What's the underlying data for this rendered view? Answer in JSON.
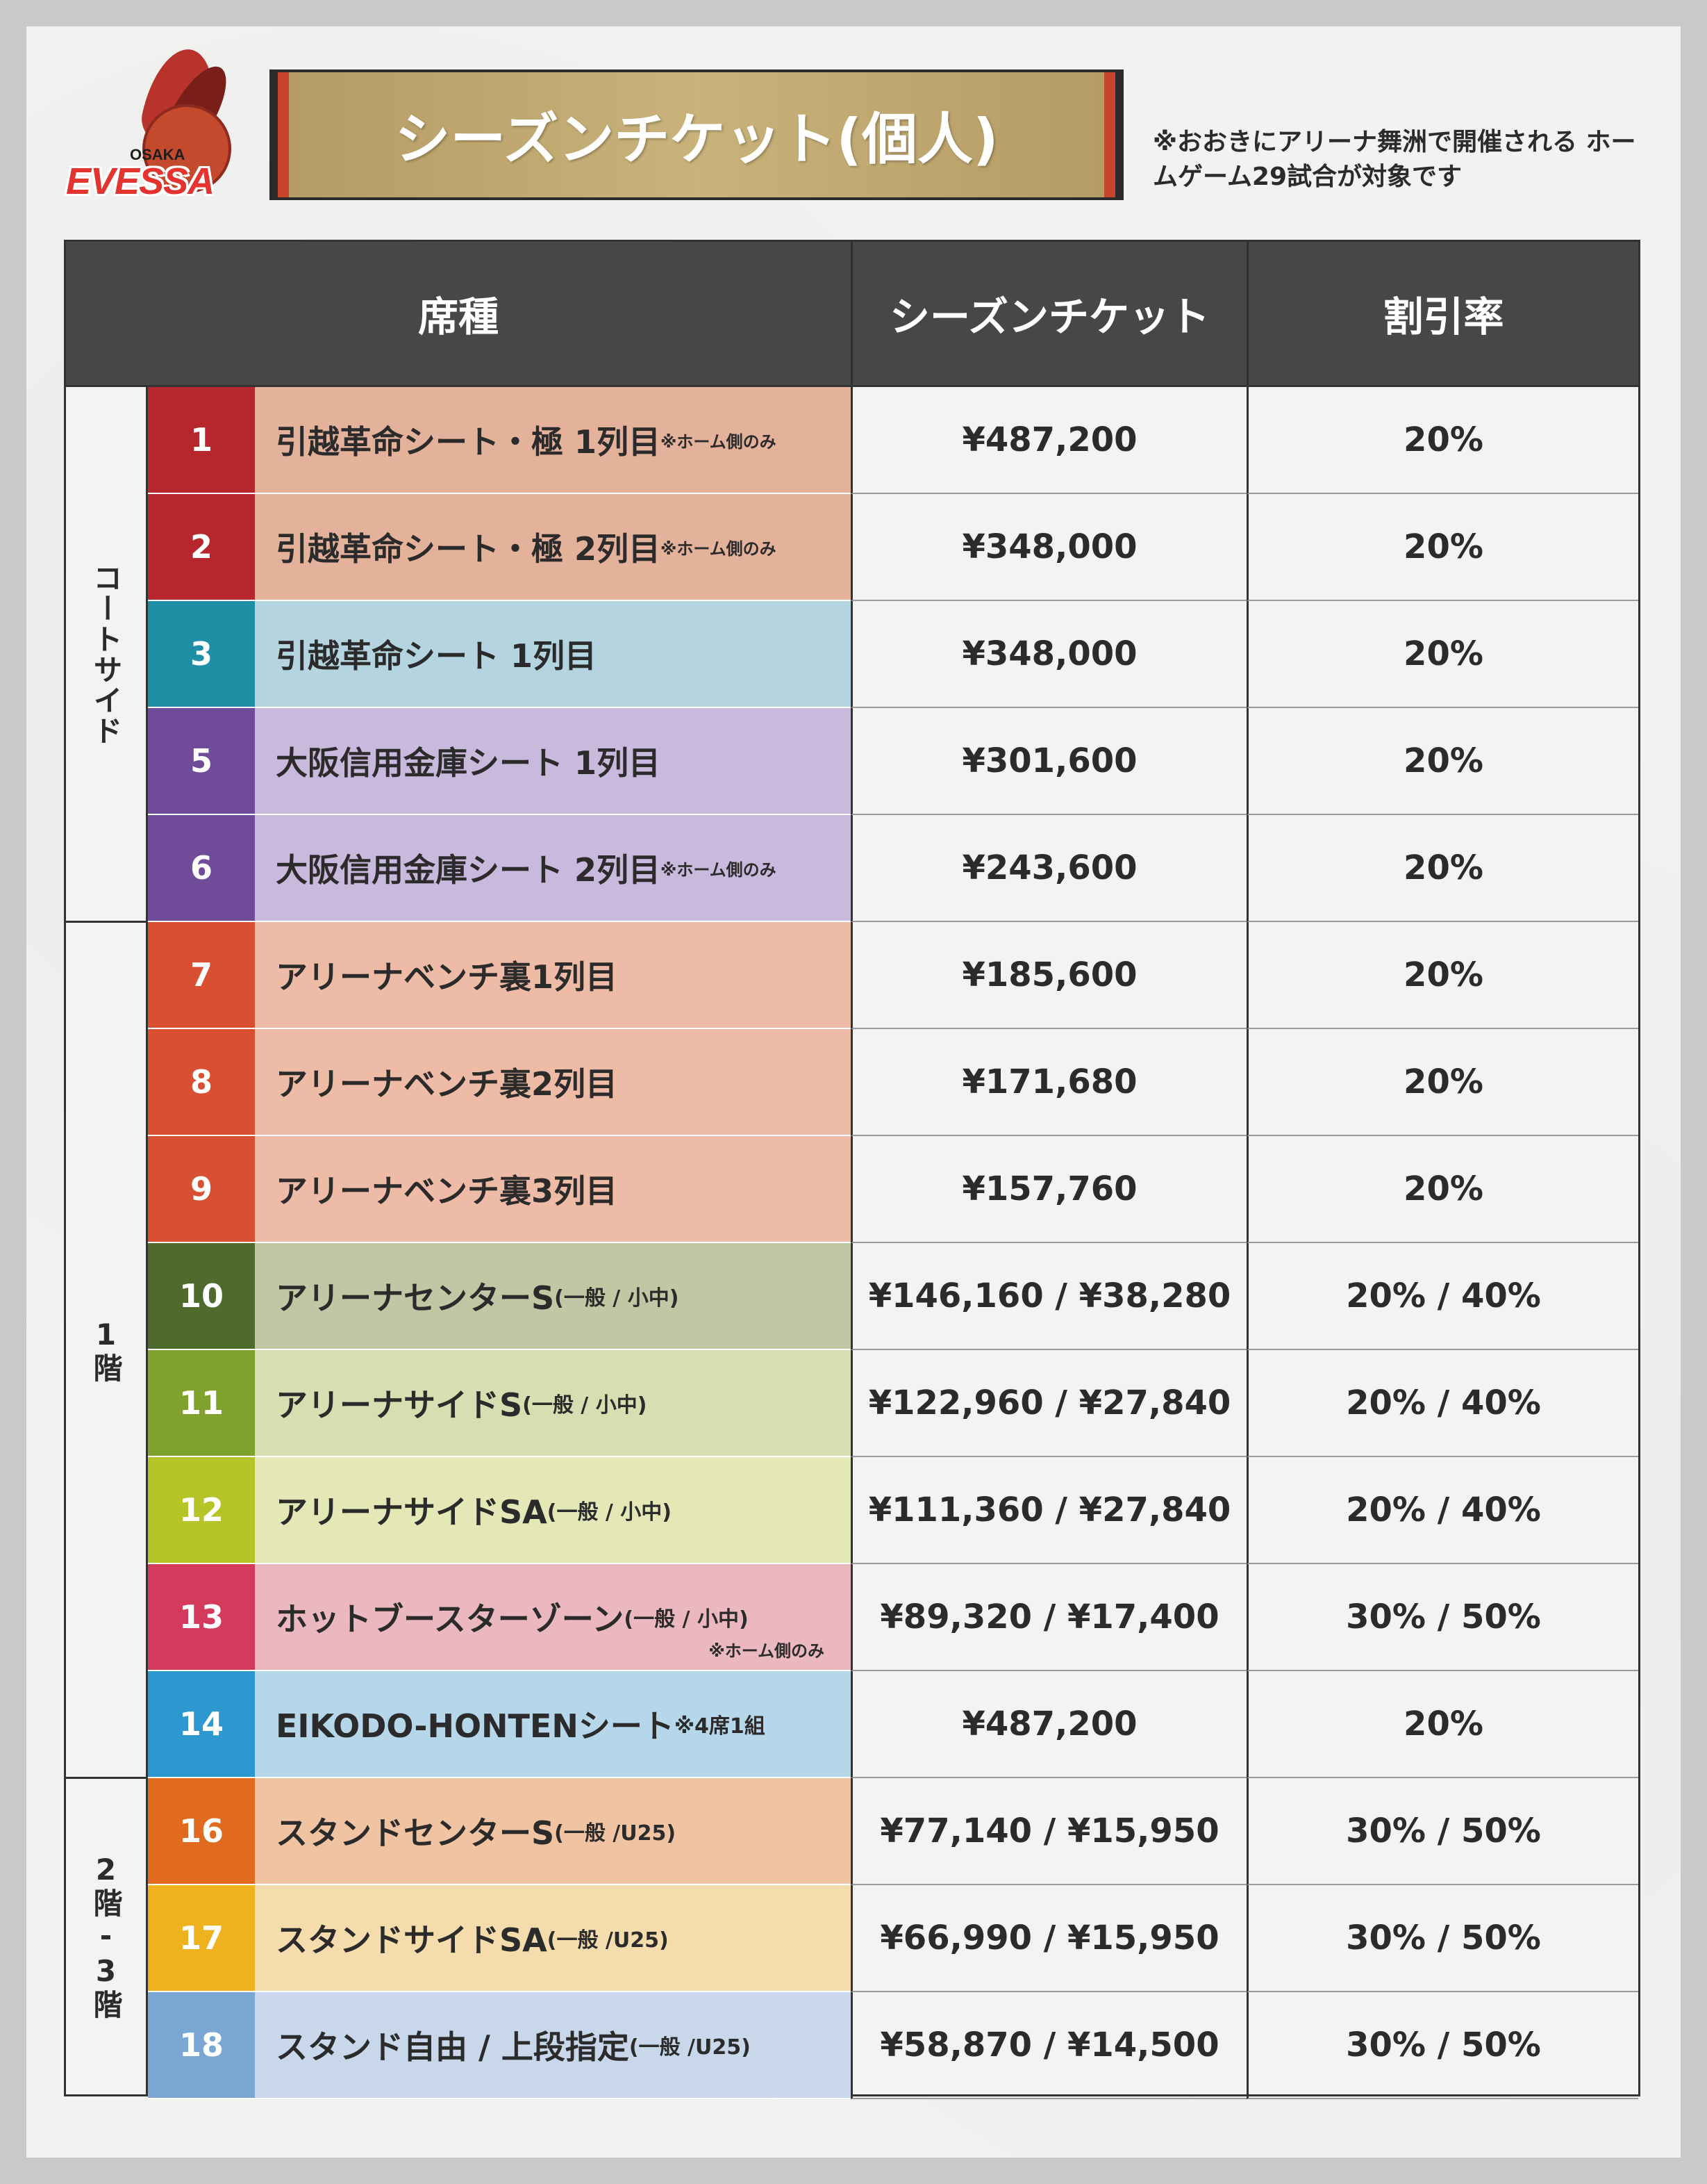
{
  "logo": {
    "word": "EVESSA",
    "sub": "OSAKA"
  },
  "title": "シーズンチケット(個人)",
  "note": "※おおきにアリーナ舞洲で開催される ホームゲーム29試合が対象です",
  "headers": {
    "seat": "席種",
    "season": "シーズンチケット",
    "discount": "割引率"
  },
  "groups": [
    {
      "label": "コートサイド"
    },
    {
      "label": "1階"
    },
    {
      "label": "2階-3階"
    }
  ],
  "rows": [
    {
      "no": "1",
      "name": "引越革命シート・極 1列目",
      "suffix": "※ホーム側のみ",
      "price": "¥487,200",
      "rate": "20%",
      "numColor": "#b8262d",
      "bg": "#e4b19b"
    },
    {
      "no": "2",
      "name": "引越革命シート・極 2列目",
      "suffix": "※ホーム側のみ",
      "price": "¥348,000",
      "rate": "20%",
      "numColor": "#b8262d",
      "bg": "#e4b19b"
    },
    {
      "no": "3",
      "name": "引越革命シート 1列目",
      "suffix": "",
      "price": "¥348,000",
      "rate": "20%",
      "numColor": "#1f8fa6",
      "bg": "#b4d5e0"
    },
    {
      "no": "5",
      "name": "大阪信用金庫シート 1列目",
      "suffix": "",
      "price": "¥301,600",
      "rate": "20%",
      "numColor": "#6f4b9a",
      "bg": "#c9b9dc"
    },
    {
      "no": "6",
      "name": "大阪信用金庫シート 2列目",
      "suffix": "※ホーム側のみ",
      "price": "¥243,600",
      "rate": "20%",
      "numColor": "#6f4b9a",
      "bg": "#c9b9dc"
    },
    {
      "no": "7",
      "name": "アリーナベンチ裏1列目",
      "suffix": "",
      "price": "¥185,600",
      "rate": "20%",
      "numColor": "#d94f32",
      "bg": "#eebba6"
    },
    {
      "no": "8",
      "name": "アリーナベンチ裏2列目",
      "suffix": "",
      "price": "¥171,680",
      "rate": "20%",
      "numColor": "#d94f32",
      "bg": "#eebba6"
    },
    {
      "no": "9",
      "name": "アリーナベンチ裏3列目",
      "suffix": "",
      "price": "¥157,760",
      "rate": "20%",
      "numColor": "#d94f32",
      "bg": "#eebba6"
    },
    {
      "no": "10",
      "name": "アリーナセンターS",
      "suffix": "(一般 / 小中)",
      "price": "¥146,160 / ¥38,280",
      "rate": "20% / 40%",
      "numColor": "#4e6b2d",
      "bg": "#bfc7a4"
    },
    {
      "no": "11",
      "name": "アリーナサイドS",
      "suffix": "(一般 / 小中)",
      "price": "¥122,960 / ¥27,840",
      "rate": "20% / 40%",
      "numColor": "#7ea22c",
      "bg": "#d6dfb2"
    },
    {
      "no": "12",
      "name": "アリーナサイドSA",
      "suffix": "(一般 / 小中)",
      "price": "¥111,360 / ¥27,840",
      "rate": "20% / 40%",
      "numColor": "#b7c427",
      "bg": "#e3e8b6"
    },
    {
      "no": "13",
      "name": "ホットブースターゾーン",
      "suffix": "(一般 / 小中)",
      "suffix2": "※ホーム側のみ",
      "price": "¥89,320 / ¥17,400",
      "rate": "30% / 50%",
      "numColor": "#d43a5c",
      "bg": "#ebb8c0"
    },
    {
      "no": "14",
      "name": "EIKODO-HONTENシート",
      "suffix": "※4席1組",
      "price": "¥487,200",
      "rate": "20%",
      "numColor": "#2d97cf",
      "bg": "#b6d6ea"
    },
    {
      "no": "16",
      "name": "スタンドセンターS",
      "suffix": "(一般 /U25)",
      "price": "¥77,140 / ¥15,950",
      "rate": "30% / 50%",
      "numColor": "#e06a1f",
      "bg": "#f0c3a3"
    },
    {
      "no": "17",
      "name": "スタンドサイドSA",
      "suffix": "(一般 /U25)",
      "price": "¥66,990 / ¥15,950",
      "rate": "30% / 50%",
      "numColor": "#f0b11e",
      "bg": "#f4dcad"
    },
    {
      "no": "18",
      "name": "スタンド自由 / 上段指定",
      "suffix": "(一般 /U25)",
      "price": "¥58,870 / ¥14,500",
      "rate": "30% / 50%",
      "numColor": "#7aa6d4",
      "bg": "#c9d7ea"
    }
  ]
}
